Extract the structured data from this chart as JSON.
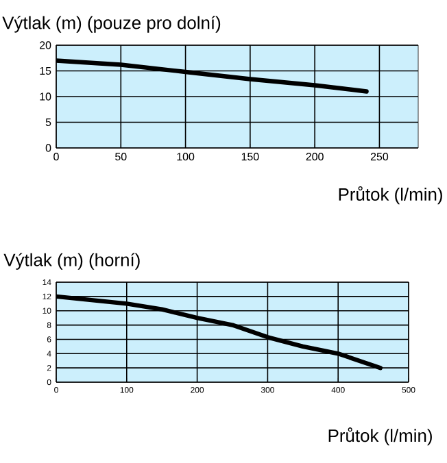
{
  "chart_data": [
    {
      "type": "line",
      "title": "Výtlak (m) (pouze pro dolní)",
      "xlabel": "Průtok (l/min)",
      "xlim": [
        0,
        280
      ],
      "xticks": [
        0,
        50,
        100,
        150,
        200,
        250
      ],
      "ylim": [
        0,
        20
      ],
      "yticks": [
        0,
        5,
        10,
        15,
        20
      ],
      "grid": true,
      "series": [
        {
          "color": "#000000",
          "x": [
            0,
            50,
            100,
            150,
            200,
            240
          ],
          "values": [
            17,
            16.2,
            14.8,
            13.4,
            12.2,
            11
          ]
        }
      ]
    },
    {
      "type": "line",
      "title": "Výtlak (m) (horní)",
      "xlabel": "Průtok (l/min)",
      "xlim": [
        0,
        500
      ],
      "xticks": [
        0,
        100,
        200,
        300,
        400,
        500
      ],
      "ylim": [
        0,
        14
      ],
      "yticks": [
        0,
        2,
        4,
        6,
        8,
        10,
        12,
        14
      ],
      "grid": true,
      "series": [
        {
          "color": "#000000",
          "x": [
            0,
            100,
            150,
            200,
            250,
            300,
            350,
            400,
            460
          ],
          "values": [
            12,
            11,
            10.2,
            9,
            8,
            6.3,
            5,
            4,
            2
          ]
        }
      ]
    }
  ]
}
